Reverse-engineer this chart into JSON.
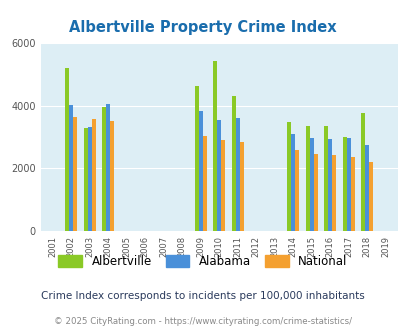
{
  "title": "Albertville Property Crime Index",
  "years": [
    2001,
    2002,
    2003,
    2004,
    2005,
    2006,
    2007,
    2008,
    2009,
    2010,
    2011,
    2012,
    2013,
    2014,
    2015,
    2016,
    2017,
    2018,
    2019
  ],
  "albertville": [
    null,
    5200,
    3300,
    3970,
    null,
    null,
    null,
    null,
    4620,
    5420,
    4320,
    null,
    null,
    3490,
    3340,
    3340,
    3000,
    3760,
    null
  ],
  "alabama": [
    null,
    4020,
    3310,
    4060,
    null,
    null,
    null,
    null,
    3820,
    3540,
    3610,
    null,
    null,
    3110,
    2980,
    2920,
    2960,
    2750,
    null
  ],
  "national": [
    null,
    3640,
    3580,
    3510,
    null,
    null,
    null,
    null,
    3020,
    2910,
    2850,
    null,
    null,
    2570,
    2460,
    2430,
    2360,
    2200,
    null
  ],
  "color_albertville": "#8ac926",
  "color_alabama": "#4a90d9",
  "color_national": "#f4a030",
  "bg_color": "#ddeef5",
  "ylim": [
    0,
    6000
  ],
  "yticks": [
    0,
    2000,
    4000,
    6000
  ],
  "subtitle": "Crime Index corresponds to incidents per 100,000 inhabitants",
  "footer": "© 2025 CityRating.com - https://www.cityrating.com/crime-statistics/",
  "title_color": "#1a6dad",
  "subtitle_color": "#2a3a5c",
  "footer_color": "#888888",
  "footer_link_color": "#4a90d9",
  "bar_width": 0.22
}
